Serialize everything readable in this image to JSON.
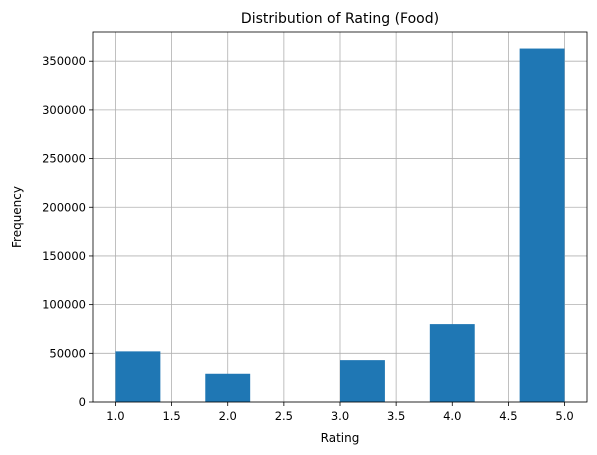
{
  "chart_data": {
    "type": "bar",
    "title": "Distribution of Rating (Food)",
    "xlabel": "Rating",
    "ylabel": "Frequency",
    "xlim": [
      0.8,
      5.2
    ],
    "ylim": [
      0,
      380000
    ],
    "grid": true,
    "bar_color": "#1f77b4",
    "bins": [
      {
        "start": 1.0,
        "end": 1.4,
        "value": 52000
      },
      {
        "start": 1.4,
        "end": 1.8,
        "value": 0
      },
      {
        "start": 1.8,
        "end": 2.2,
        "value": 29000
      },
      {
        "start": 2.2,
        "end": 2.6,
        "value": 0
      },
      {
        "start": 2.6,
        "end": 3.0,
        "value": 0
      },
      {
        "start": 3.0,
        "end": 3.4,
        "value": 43000
      },
      {
        "start": 3.4,
        "end": 3.8,
        "value": 0
      },
      {
        "start": 3.8,
        "end": 4.2,
        "value": 80000
      },
      {
        "start": 4.2,
        "end": 4.6,
        "value": 0
      },
      {
        "start": 4.6,
        "end": 5.0,
        "value": 363000
      }
    ],
    "x_ticks": [
      "1.0",
      "1.5",
      "2.0",
      "2.5",
      "3.0",
      "3.5",
      "4.0",
      "4.5",
      "5.0"
    ],
    "y_ticks": [
      "0",
      "50000",
      "100000",
      "150000",
      "200000",
      "250000",
      "300000",
      "350000"
    ]
  }
}
